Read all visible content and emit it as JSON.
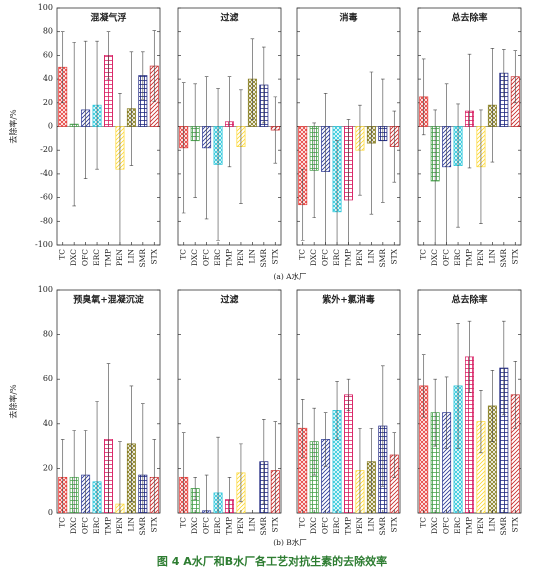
{
  "caption": "图 4 A水厂和B水厂各工艺对抗生素的去除效率",
  "group_labels": [
    "(a) A水厂",
    "(b) B水厂"
  ],
  "chart_data": [
    {
      "type": "bar",
      "title": "混凝气浮",
      "ylabel": "去除率/%",
      "categories": [
        "TC",
        "DXC",
        "OFC",
        "ERC",
        "TMP",
        "PEN",
        "LIN",
        "SMR",
        "STX"
      ],
      "values": [
        50,
        2,
        14,
        18,
        60,
        -36,
        15,
        43,
        51
      ],
      "errors": [
        30,
        69,
        58,
        54,
        20,
        64,
        48,
        20,
        30
      ],
      "colors": [
        "#e53935",
        "#43a047",
        "#283593",
        "#26c6da",
        "#d81b60",
        "#fdd835",
        "#827717",
        "#1a237e",
        "#c62828"
      ],
      "ylim": [
        -100,
        100
      ],
      "yticks": [
        -100,
        -80,
        -60,
        -40,
        -20,
        0,
        20,
        40,
        60,
        80,
        100
      ]
    },
    {
      "type": "bar",
      "title": "过滤",
      "categories": [
        "TC",
        "DXC",
        "OFC",
        "ERC",
        "TMP",
        "PEN",
        "LIN",
        "SMR",
        "STX"
      ],
      "values": [
        -18,
        -12,
        -18,
        -32,
        4,
        -17,
        40,
        35,
        -3
      ],
      "errors": [
        55,
        48,
        60,
        64,
        38,
        48,
        34,
        32,
        28
      ],
      "colors": [
        "#e53935",
        "#43a047",
        "#283593",
        "#26c6da",
        "#d81b60",
        "#fdd835",
        "#827717",
        "#1a237e",
        "#c62828"
      ],
      "ylim": [
        -100,
        100
      ],
      "yticks": [
        -100,
        -80,
        -60,
        -40,
        -20,
        0,
        20,
        40,
        60,
        80,
        100
      ]
    },
    {
      "type": "bar",
      "title": "消毒",
      "categories": [
        "TC",
        "DXC",
        "OFC",
        "ERC",
        "TMP",
        "PEN",
        "LIN",
        "SMR",
        "STX"
      ],
      "values": [
        -66,
        -37,
        -38,
        -72,
        -62,
        -20,
        -14,
        -12,
        -17
      ],
      "errors": [
        30,
        40,
        66,
        60,
        68,
        38,
        60,
        52,
        30
      ],
      "colors": [
        "#e53935",
        "#43a047",
        "#283593",
        "#26c6da",
        "#d81b60",
        "#fdd835",
        "#827717",
        "#1a237e",
        "#c62828"
      ],
      "ylim": [
        -100,
        100
      ],
      "yticks": [
        -100,
        -80,
        -60,
        -40,
        -20,
        0,
        20,
        40,
        60,
        80,
        100
      ]
    },
    {
      "type": "bar",
      "title": "总去除率",
      "categories": [
        "TC",
        "DXC",
        "OFC",
        "ERC",
        "TMP",
        "PEN",
        "LIN",
        "SMR",
        "STX"
      ],
      "values": [
        25,
        -46,
        -34,
        -33,
        13,
        -34,
        18,
        45,
        42
      ],
      "errors": [
        32,
        60,
        70,
        52,
        48,
        48,
        48,
        20,
        22
      ],
      "colors": [
        "#e53935",
        "#43a047",
        "#283593",
        "#26c6da",
        "#d81b60",
        "#fdd835",
        "#827717",
        "#1a237e",
        "#c62828"
      ],
      "ylim": [
        -100,
        100
      ],
      "yticks": [
        -100,
        -80,
        -60,
        -40,
        -20,
        0,
        20,
        40,
        60,
        80,
        100
      ]
    },
    {
      "type": "bar",
      "title": "预臭氧+混凝沉淀",
      "ylabel": "去除率/%",
      "categories": [
        "TC",
        "DXC",
        "OFC",
        "ERC",
        "TMP",
        "PEN",
        "LIN",
        "SMR",
        "STX"
      ],
      "values": [
        16,
        16,
        17,
        14,
        33,
        4,
        31,
        17,
        16
      ],
      "errors": [
        17,
        21,
        20,
        36,
        34,
        28,
        26,
        32,
        17
      ],
      "colors": [
        "#e53935",
        "#43a047",
        "#283593",
        "#26c6da",
        "#d81b60",
        "#fdd835",
        "#827717",
        "#1a237e",
        "#c62828"
      ],
      "ylim": [
        0,
        100
      ],
      "yticks": [
        0,
        20,
        40,
        60,
        80,
        100
      ]
    },
    {
      "type": "bar",
      "title": "过滤",
      "categories": [
        "TC",
        "DXC",
        "OFC",
        "ERC",
        "TMP",
        "PEN",
        "LIN",
        "SMR",
        "STX"
      ],
      "values": [
        16,
        11,
        1,
        9,
        6,
        18,
        0,
        23,
        19
      ],
      "errors": [
        20,
        5,
        16,
        25,
        10,
        13,
        0,
        19,
        22
      ],
      "colors": [
        "#e53935",
        "#43a047",
        "#283593",
        "#26c6da",
        "#d81b60",
        "#fdd835",
        "#827717",
        "#1a237e",
        "#c62828"
      ],
      "ylim": [
        0,
        100
      ],
      "yticks": [
        0,
        20,
        40,
        60,
        80,
        100
      ]
    },
    {
      "type": "bar",
      "title": "紫外+氯消毒",
      "categories": [
        "TC",
        "DXC",
        "OFC",
        "ERC",
        "TMP",
        "PEN",
        "LIN",
        "SMR",
        "STX"
      ],
      "values": [
        38,
        32,
        33,
        46,
        53,
        19,
        23,
        39,
        26
      ],
      "errors": [
        13,
        15,
        12,
        13,
        7,
        19,
        15,
        27,
        10
      ],
      "colors": [
        "#e53935",
        "#43a047",
        "#283593",
        "#26c6da",
        "#d81b60",
        "#fdd835",
        "#827717",
        "#1a237e",
        "#c62828"
      ],
      "ylim": [
        0,
        100
      ],
      "yticks": [
        0,
        20,
        40,
        60,
        80,
        100
      ]
    },
    {
      "type": "bar",
      "title": "总去除率",
      "categories": [
        "TC",
        "DXC",
        "OFC",
        "ERC",
        "TMP",
        "PEN",
        "LIN",
        "SMR",
        "STX"
      ],
      "values": [
        57,
        45,
        45,
        57,
        70,
        41,
        48,
        65,
        53
      ],
      "errors": [
        14,
        15,
        16,
        28,
        16,
        14,
        16,
        21,
        15
      ],
      "colors": [
        "#e53935",
        "#43a047",
        "#283593",
        "#26c6da",
        "#d81b60",
        "#fdd835",
        "#827717",
        "#1a237e",
        "#c62828"
      ],
      "ylim": [
        0,
        100
      ],
      "yticks": [
        0,
        20,
        40,
        60,
        80,
        100
      ]
    }
  ]
}
